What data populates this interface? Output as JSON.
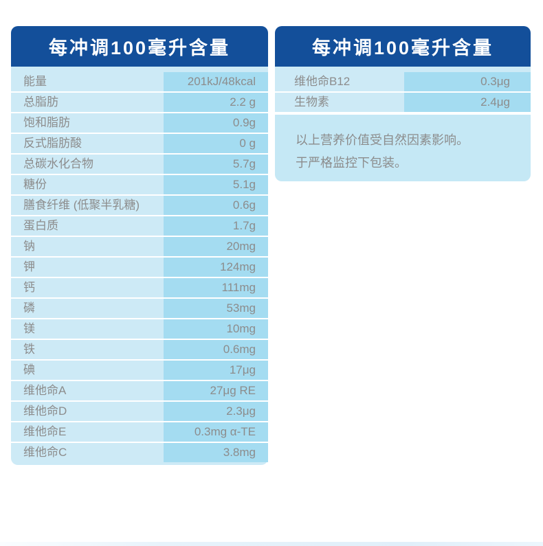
{
  "colors": {
    "page_bg": "#ffffff",
    "header_bg": "#134f9a",
    "header_text": "#ffffff",
    "label_bg": "#cdeaf6",
    "value_bg": "#a4dcf1",
    "note_bg": "#c5e8f5",
    "row_text": "#8c8c8c",
    "separator": "#ffffff"
  },
  "left_table": {
    "title": "每冲调100毫升含量",
    "rows": [
      {
        "label": "能量",
        "value": "201kJ/48kcal"
      },
      {
        "label": "总脂肪",
        "value": "2.2 g"
      },
      {
        "label": "饱和脂肪",
        "value": "0.9g"
      },
      {
        "label": "反式脂肪酸",
        "value": "0 g"
      },
      {
        "label": "总碳水化合物",
        "value": "5.7g"
      },
      {
        "label": "糖份",
        "value": "5.1g"
      },
      {
        "label": "膳食纤维 (低聚半乳糖)",
        "value": "0.6g"
      },
      {
        "label": "蛋白质",
        "value": "1.7g"
      },
      {
        "label": "钠",
        "value": "20mg"
      },
      {
        "label": "钾",
        "value": "124mg"
      },
      {
        "label": "钙",
        "value": "111mg"
      },
      {
        "label": "磷",
        "value": "53mg"
      },
      {
        "label": "镁",
        "value": "10mg"
      },
      {
        "label": "铁",
        "value": "0.6mg"
      },
      {
        "label": "碘",
        "value": "17μg"
      },
      {
        "label": "维他命A",
        "value": "27μg RE"
      },
      {
        "label": "维他命D",
        "value": "2.3μg"
      },
      {
        "label": "维他命E",
        "value": "0.3mg α-TE"
      },
      {
        "label": "维他命C",
        "value": "3.8mg"
      }
    ]
  },
  "right_table": {
    "title": "每冲调100毫升含量",
    "rows": [
      {
        "label": "维他命B12",
        "value": "0.3μg"
      },
      {
        "label": "生物素",
        "value": "2.4μg"
      }
    ],
    "note_lines": [
      "以上营养价值受自然因素影响。",
      "于严格监控下包装。"
    ]
  }
}
